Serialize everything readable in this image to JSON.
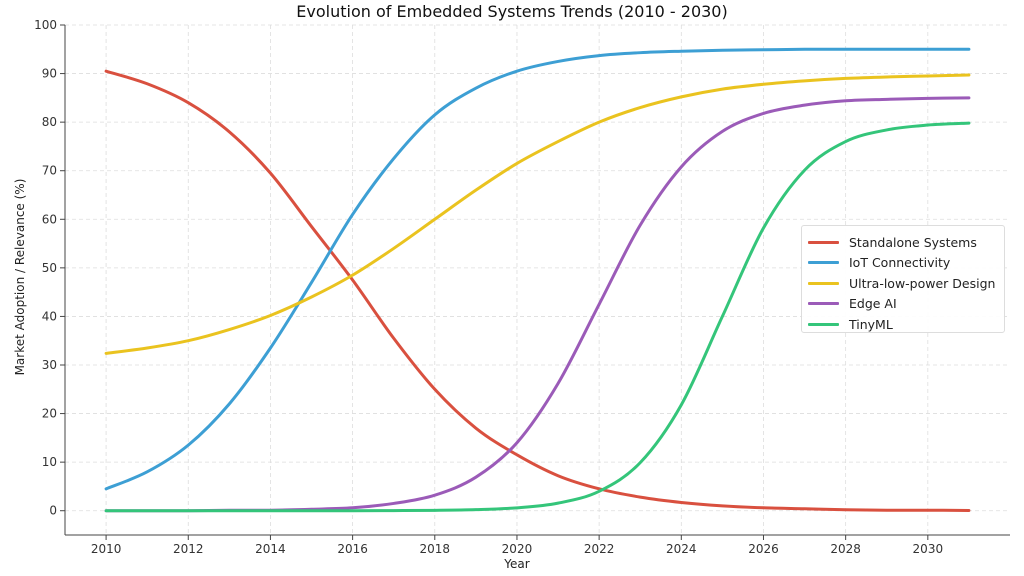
{
  "chart_data": {
    "type": "line",
    "title": "Evolution of Embedded Systems Trends (2010 - 2030)",
    "xlabel": "Year",
    "ylabel": "Market Adoption / Relevance (%)",
    "xlim": [
      2009,
      2032
    ],
    "ylim": [
      -5,
      100
    ],
    "xticks": [
      2010,
      2012,
      2014,
      2016,
      2018,
      2020,
      2022,
      2024,
      2026,
      2028,
      2030
    ],
    "yticks": [
      0,
      10,
      20,
      30,
      40,
      50,
      60,
      70,
      80,
      90,
      100
    ],
    "grid": true,
    "legend_position": "center-right",
    "x": [
      2010,
      2011,
      2012,
      2013,
      2014,
      2015,
      2016,
      2017,
      2018,
      2019,
      2020,
      2021,
      2022,
      2023,
      2024,
      2025,
      2026,
      2027,
      2028,
      2029,
      2030,
      2031
    ],
    "series": [
      {
        "name": "Standalone Systems",
        "color": "#d9503f",
        "values": [
          90.5,
          87.9,
          84.0,
          78.0,
          69.5,
          58.5,
          47.5,
          35.5,
          25.0,
          17.0,
          11.5,
          7.2,
          4.5,
          2.8,
          1.7,
          1.0,
          0.6,
          0.4,
          0.2,
          0.1,
          0.1,
          0.05
        ]
      },
      {
        "name": "IoT Connectivity",
        "color": "#3d9fd4",
        "values": [
          4.5,
          8.0,
          13.5,
          22.0,
          33.5,
          47.0,
          61.0,
          72.5,
          81.5,
          87.0,
          90.5,
          92.5,
          93.7,
          94.3,
          94.6,
          94.8,
          94.9,
          95.0,
          95.0,
          95.0,
          95.0,
          95.0
        ]
      },
      {
        "name": "Ultra-low-power Design",
        "color": "#eac31f",
        "values": [
          32.4,
          33.5,
          35.0,
          37.3,
          40.2,
          44.0,
          48.5,
          54.0,
          60.0,
          66.0,
          71.5,
          76.0,
          80.0,
          83.0,
          85.2,
          86.8,
          87.8,
          88.5,
          89.0,
          89.3,
          89.5,
          89.7
        ]
      },
      {
        "name": "Edge AI",
        "color": "#9b5bb8",
        "values": [
          0.0,
          0.0,
          0.0,
          0.1,
          0.1,
          0.3,
          0.6,
          1.5,
          3.2,
          6.9,
          14.0,
          26.2,
          42.5,
          58.8,
          70.8,
          78.1,
          81.8,
          83.5,
          84.4,
          84.7,
          84.9,
          85.0
        ]
      },
      {
        "name": "TinyML",
        "color": "#34c57a",
        "values": [
          0.0,
          0.0,
          0.0,
          0.0,
          0.0,
          0.0,
          0.0,
          0.03,
          0.08,
          0.22,
          0.59,
          1.56,
          4.0,
          9.9,
          21.8,
          40.0,
          58.2,
          70.1,
          76.0,
          78.4,
          79.4,
          79.8
        ]
      }
    ]
  }
}
